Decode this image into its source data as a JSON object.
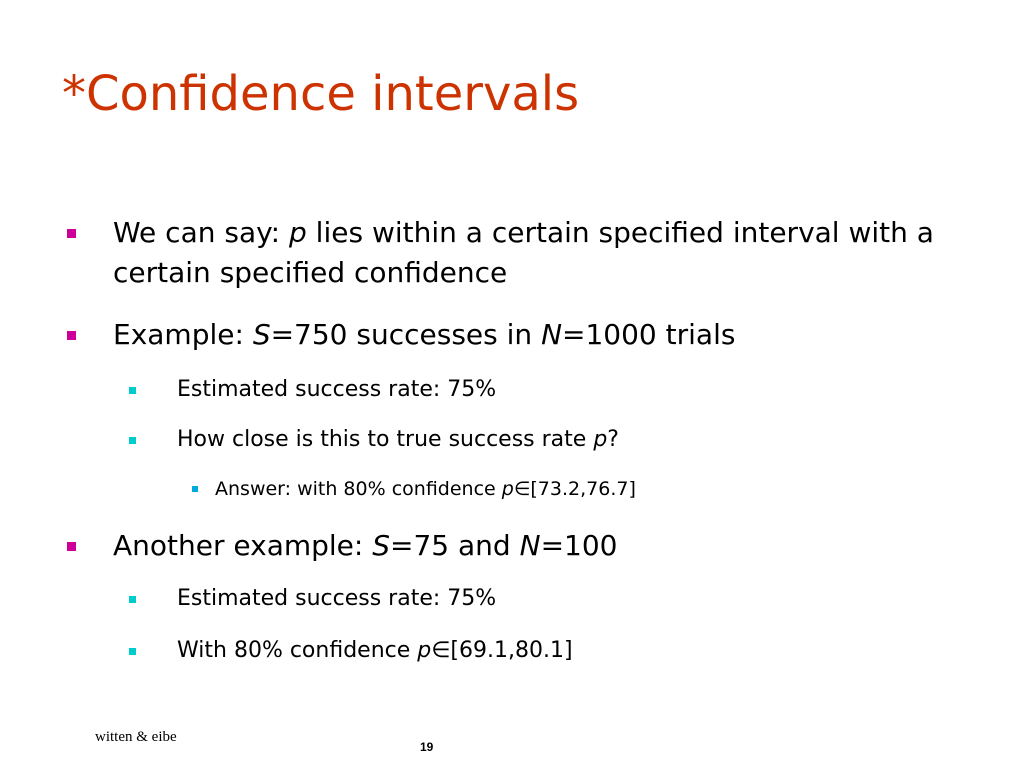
{
  "slide": {
    "title": "*Confidence intervals",
    "bullets": [
      {
        "level": 1,
        "runs": [
          {
            "text": "We can say: "
          },
          {
            "text": "p",
            "italic": true
          },
          {
            "text": " lies within a certain specified interval with a certain specified confidence"
          }
        ]
      },
      {
        "level": 1,
        "runs": [
          {
            "text": "Example: "
          },
          {
            "text": "S",
            "italic": true
          },
          {
            "text": "=750 successes in "
          },
          {
            "text": "N",
            "italic": true
          },
          {
            "text": "=1000 trials"
          }
        ]
      },
      {
        "level": 2,
        "runs": [
          {
            "text": "Estimated success rate: 75%"
          }
        ]
      },
      {
        "level": 2,
        "runs": [
          {
            "text": "How close is this to true success rate "
          },
          {
            "text": "p",
            "italic": true
          },
          {
            "text": "?"
          }
        ]
      },
      {
        "level": 3,
        "runs": [
          {
            "text": "Answer: with 80% confidence "
          },
          {
            "text": "p",
            "italic": true
          },
          {
            "text": "∈[73.2,76.7]"
          }
        ]
      },
      {
        "level": 1,
        "runs": [
          {
            "text": "Another example: "
          },
          {
            "text": "S",
            "italic": true
          },
          {
            "text": "=75 and "
          },
          {
            "text": "N",
            "italic": true
          },
          {
            "text": "=100"
          }
        ]
      },
      {
        "level": 2,
        "runs": [
          {
            "text": "Estimated success rate: 75%"
          }
        ]
      },
      {
        "level": 2,
        "runs": [
          {
            "text": "With 80% confidence "
          },
          {
            "text": "p",
            "italic": true
          },
          {
            "text": "∈[69.1,80.1]"
          }
        ]
      }
    ],
    "footer": "witten & eibe",
    "page_number": 19
  }
}
